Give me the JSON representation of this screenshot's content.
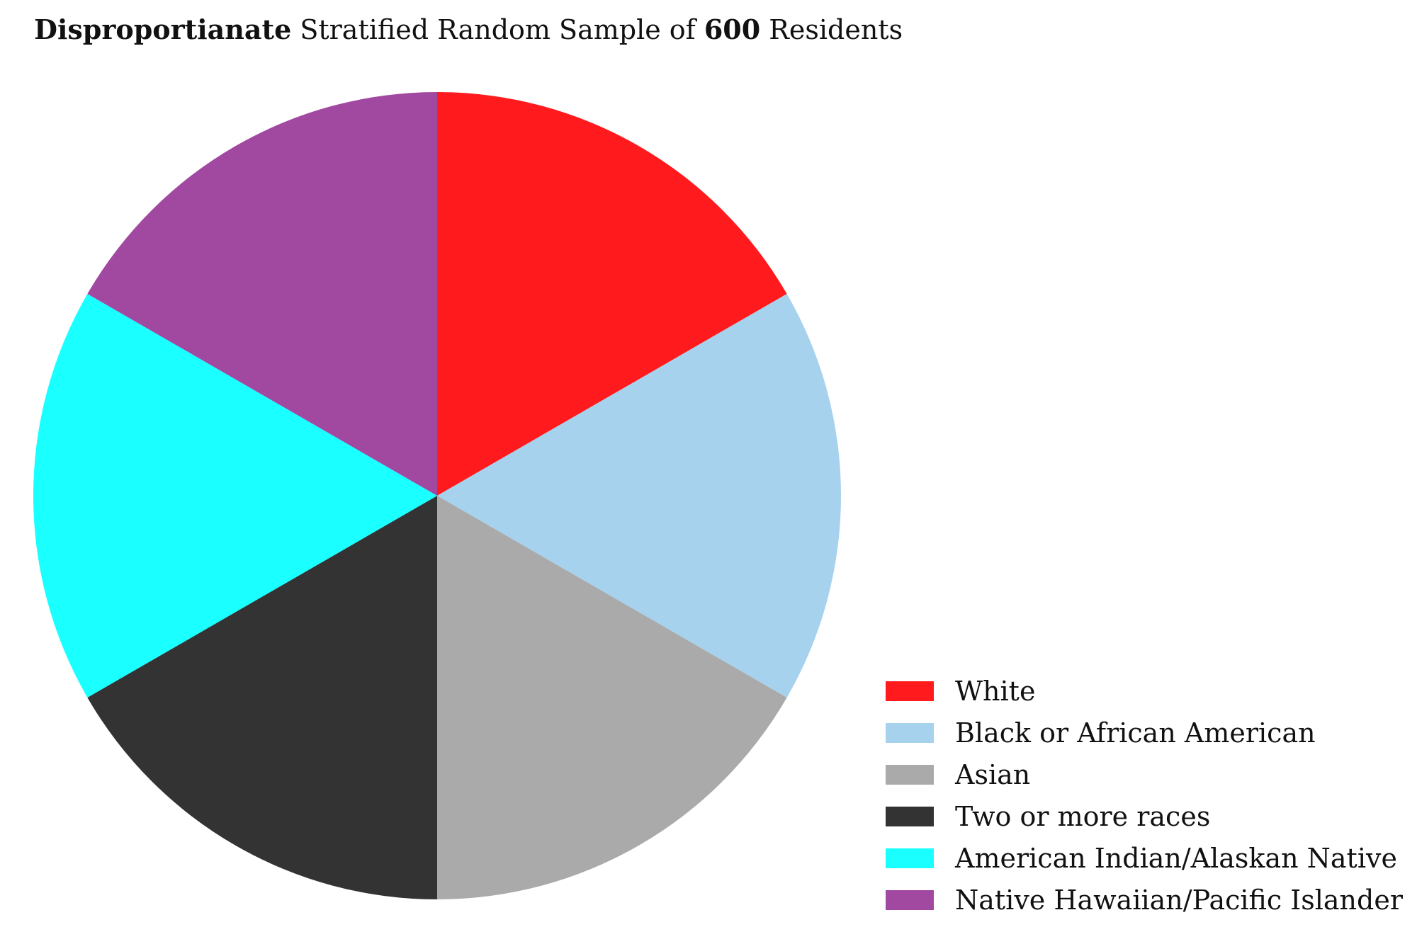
{
  "title": {
    "part1": "Disproportianate",
    "part2": " Stratified Random Sample of ",
    "part3": "600",
    "part4": " Residents"
  },
  "chart_data": {
    "type": "pie",
    "start_angle": "12 o'clock",
    "direction": "clockwise",
    "legend_position": "bottom-right",
    "categories": [
      "White",
      "Black or African American",
      "Asian",
      "Two or more races",
      "American Indian/Alaskan Native",
      "Native Hawaiian/Pacific Islander"
    ],
    "values": [
      100,
      100,
      100,
      100,
      100,
      100
    ],
    "colors": [
      "#ff1a1e",
      "#a6d2ee",
      "#aaaaaa",
      "#333333",
      "#1affff",
      "#a149a1"
    ]
  }
}
